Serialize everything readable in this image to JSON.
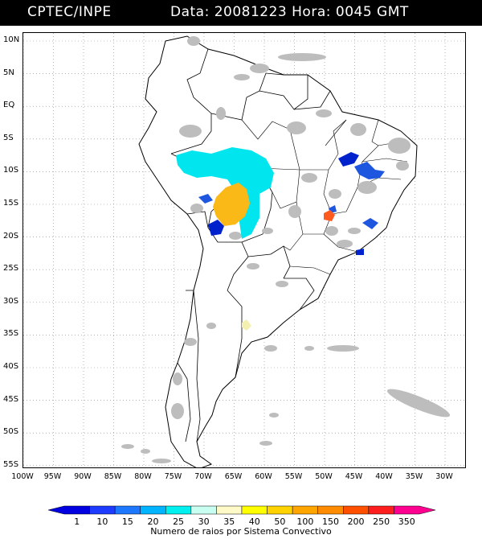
{
  "header": {
    "org": "CPTEC/INPE",
    "stamp": "Data: 20081223 Hora: 0045 GMT"
  },
  "map": {
    "lat_labels": [
      "10N",
      "5N",
      "EQ",
      "5S",
      "10S",
      "15S",
      "20S",
      "25S",
      "30S",
      "35S",
      "40S",
      "45S",
      "50S",
      "55S"
    ],
    "lon_labels": [
      "100W",
      "95W",
      "90W",
      "85W",
      "80W",
      "75W",
      "70W",
      "65W",
      "60W",
      "55W",
      "50W",
      "45W",
      "40W",
      "35W",
      "30W"
    ],
    "colors": {
      "land": "#ffffff",
      "border": "#000000",
      "cloud_gray": "#bdbdbd",
      "cyan": "#00e5ee",
      "orange": "#fbb917",
      "blue_dark": "#0022cc",
      "blue_mid": "#1e56e0",
      "red_orange": "#ff5a1f",
      "pale_yellow": "#f4f0b0"
    }
  },
  "legend": {
    "values": [
      "1",
      "10",
      "15",
      "20",
      "25",
      "30",
      "35",
      "40",
      "50",
      "100",
      "150",
      "200",
      "250",
      "350"
    ],
    "colors": [
      "#0000e0",
      "#1e3cff",
      "#1e78ff",
      "#00b4ff",
      "#00f0f0",
      "#c8fff0",
      "#fffac8",
      "#ffff00",
      "#ffd200",
      "#ffa500",
      "#ff8c00",
      "#ff5000",
      "#ff1e1e",
      "#ff0090"
    ],
    "title": "Numero de raios por Sistema Convectivo"
  }
}
